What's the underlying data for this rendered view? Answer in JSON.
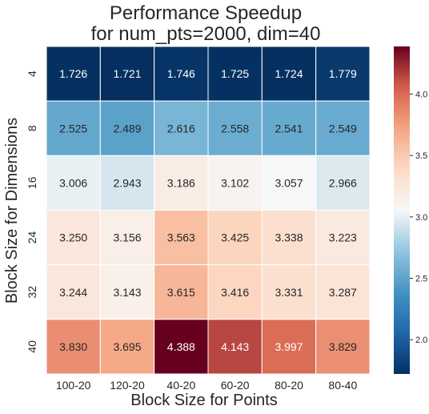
{
  "chart_data": {
    "type": "heatmap",
    "title": [
      "Performance Speedup",
      "for num_pts=2000, dim=40"
    ],
    "xlabel": "Block Size for Points",
    "ylabel": "Block Size for Dimensions",
    "x_categories": [
      "100-20",
      "120-20",
      "40-20",
      "60-20",
      "80-20",
      "80-40"
    ],
    "y_categories": [
      "4",
      "8",
      "16",
      "24",
      "32",
      "40"
    ],
    "values": [
      [
        1.726,
        1.721,
        1.746,
        1.725,
        1.724,
        1.779
      ],
      [
        2.525,
        2.489,
        2.616,
        2.558,
        2.541,
        2.549
      ],
      [
        3.006,
        2.943,
        3.186,
        3.102,
        3.057,
        2.966
      ],
      [
        3.25,
        3.156,
        3.563,
        3.425,
        3.338,
        3.223
      ],
      [
        3.244,
        3.143,
        3.615,
        3.416,
        3.331,
        3.287
      ],
      [
        3.83,
        3.695,
        4.388,
        4.143,
        3.997,
        3.829
      ]
    ],
    "value_format": "0.000",
    "colormap": "RdBu_r",
    "color_range": [
      1.721,
      4.388
    ],
    "colorbar_ticks": [
      2.0,
      2.5,
      3.0,
      3.5,
      4.0
    ],
    "colorbar_tick_labels": [
      "2.0",
      "2.5",
      "3.0",
      "3.5",
      "4.0"
    ]
  }
}
